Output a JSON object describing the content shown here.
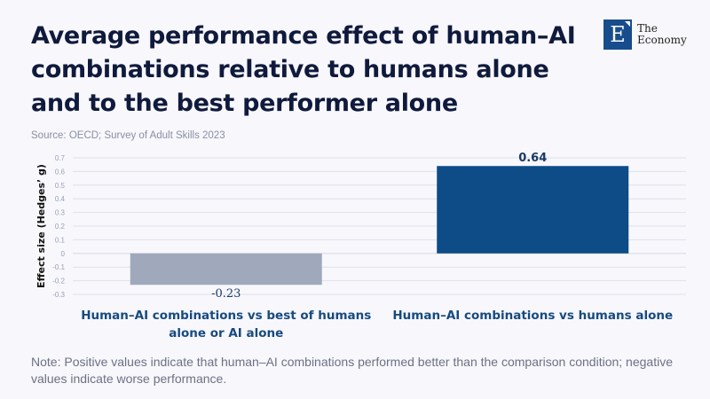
{
  "header": {
    "title": "Average performance effect of human–AI combinations relative to humans alone and to the best performer alone",
    "source": "Source: OECD; Survey of Adult Skills 2023"
  },
  "logo": {
    "letter": "E",
    "line1": "The",
    "line2": "Economy"
  },
  "note": "Note: Positive values indicate that human–AI combinations performed better than the comparison condition; negative values indicate worse performance.",
  "chart_data": {
    "type": "bar",
    "title": "Average performance effect of human–AI combinations relative to humans alone and to the best performer alone",
    "xlabel": "",
    "ylabel": "Effect size (Hedges’ g)",
    "ylim": [
      -0.3,
      0.7
    ],
    "yticks": [
      0.7,
      0.6,
      0.5,
      0.4,
      0.3,
      0.2,
      0.1,
      0,
      -0.1,
      -0.2,
      -0.3
    ],
    "ytick_labels": [
      "0.7",
      "0.6",
      "0.5",
      "0.4",
      "0.3",
      "0.2",
      "0.1",
      "0",
      "-0.1",
      "-0.2",
      "-0.3"
    ],
    "grid": true,
    "categories": [
      [
        "Human–AI combinations vs best of humans",
        "alone or AI alone"
      ],
      [
        "Human–AI combinations vs humans alone"
      ]
    ],
    "values": [
      -0.23,
      0.64
    ],
    "data_labels": [
      "-0.23",
      "0.64"
    ],
    "colors": [
      "#a0a8bc",
      "#0d4c87"
    ]
  },
  "colors": {
    "title": "#0f1a3c",
    "category_label": "#174a7e",
    "grid": "#dfe1ea",
    "tick": "#9aa0b2"
  }
}
